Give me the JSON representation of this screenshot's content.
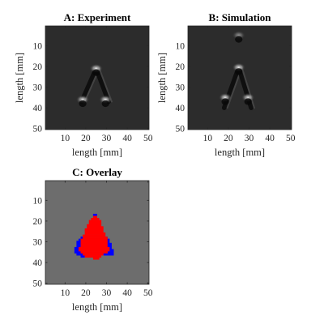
{
  "figure": {
    "background": "#ffffff",
    "axis_color": "#262626"
  },
  "chart_data": [
    {
      "type": "heatmap",
      "title": "A: Experiment",
      "xlabel": "length [mm]",
      "ylabel": "length [mm]",
      "xlim": [
        0.5,
        50.5
      ],
      "ylim": [
        0.5,
        50.5
      ],
      "xticks": [
        10,
        20,
        30,
        40,
        50
      ],
      "yticks": [
        10,
        20,
        30,
        40,
        50
      ],
      "y_direction": "down",
      "colormap": "gray",
      "background_color": "#2b2b2b",
      "features": [
        {
          "kind": "bright",
          "x": 25,
          "y": 21,
          "intensity": 0.95
        },
        {
          "kind": "bright",
          "x": 18.5,
          "y": 36,
          "intensity": 0.9
        },
        {
          "kind": "bright",
          "x": 29.5,
          "y": 36,
          "intensity": 0.9
        },
        {
          "kind": "dark-streak",
          "from": [
            25,
            21
          ],
          "to": [
            18,
            37
          ]
        },
        {
          "kind": "dark-streak",
          "from": [
            25,
            21
          ],
          "to": [
            31,
            37
          ]
        }
      ]
    },
    {
      "type": "heatmap",
      "title": "B: Simulation",
      "xlabel": "length [mm]",
      "ylabel": "length [mm]",
      "xlim": [
        0.5,
        50.5
      ],
      "ylim": [
        0.5,
        50.5
      ],
      "xticks": [
        10,
        20,
        30,
        40,
        50
      ],
      "yticks": [
        10,
        20,
        30,
        40,
        50
      ],
      "y_direction": "down",
      "colormap": "gray",
      "background_color": "#2b2b2b",
      "features": [
        {
          "kind": "bright",
          "x": 25,
          "y": 20.5,
          "intensity": 0.95
        },
        {
          "kind": "bright",
          "x": 18.5,
          "y": 35,
          "intensity": 0.9
        },
        {
          "kind": "bright",
          "x": 29.5,
          "y": 35,
          "intensity": 0.9
        },
        {
          "kind": "dark-streak",
          "from": [
            25,
            20.5
          ],
          "to": [
            18,
            40
          ]
        },
        {
          "kind": "dark-streak",
          "from": [
            25,
            20.5
          ],
          "to": [
            31,
            40
          ]
        },
        {
          "kind": "bright",
          "x": 25,
          "y": 5,
          "intensity": 0.5
        }
      ]
    },
    {
      "type": "heatmap",
      "title": "C: Overlay",
      "xlabel": "length [mm]",
      "ylabel": "",
      "xlim": [
        0.5,
        50.5
      ],
      "ylim": [
        0.5,
        50.5
      ],
      "xticks": [
        10,
        20,
        30,
        40,
        50
      ],
      "yticks": [
        10,
        20,
        30,
        40,
        50
      ],
      "y_direction": "down",
      "background_color": "#6d6d6d",
      "regions": [
        {
          "color": "#0000ff",
          "rows": [
            {
              "y": 28,
              "x": [
                18,
                20
              ]
            },
            {
              "y": 29,
              "x": [
                17,
                19
              ]
            },
            {
              "y": 30,
              "x": [
                16,
                18
              ]
            },
            {
              "y": 31,
              "x": [
                16,
                18
              ]
            },
            {
              "y": 32,
              "x": [
                16,
                18
              ]
            },
            {
              "y": 33,
              "x": [
                15,
                17
              ]
            },
            {
              "y": 34,
              "x": [
                15,
                17
              ]
            },
            {
              "y": 35,
              "x": [
                15,
                18
              ]
            },
            {
              "y": 36,
              "x": [
                16,
                19
              ]
            },
            {
              "y": 37,
              "x": [
                18,
                19
              ]
            },
            {
              "y": 28,
              "x": [
                29,
                30
              ]
            },
            {
              "y": 29,
              "x": [
                30,
                31
              ]
            },
            {
              "y": 30,
              "x": [
                30,
                31
              ]
            },
            {
              "y": 31,
              "x": [
                30,
                32
              ]
            },
            {
              "y": 32,
              "x": [
                30,
                32
              ]
            },
            {
              "y": 33,
              "x": [
                31,
                32
              ]
            },
            {
              "y": 34,
              "x": [
                31,
                33
              ]
            },
            {
              "y": 35,
              "x": [
                31,
                33
              ]
            },
            {
              "y": 36,
              "x": [
                29,
                33
              ]
            },
            {
              "y": 17,
              "x": [
                24,
                25
              ]
            },
            {
              "y": 20,
              "x": [
                23,
                23
              ]
            }
          ]
        },
        {
          "color": "#ff0000",
          "rows": [
            {
              "y": 18,
              "x": [
                24,
                25
              ]
            },
            {
              "y": 19,
              "x": [
                23,
                26
              ]
            },
            {
              "y": 20,
              "x": [
                22,
                27
              ]
            },
            {
              "y": 21,
              "x": [
                22,
                27
              ]
            },
            {
              "y": 22,
              "x": [
                21,
                27
              ]
            },
            {
              "y": 23,
              "x": [
                21,
                28
              ]
            },
            {
              "y": 24,
              "x": [
                20,
                28
              ]
            },
            {
              "y": 25,
              "x": [
                20,
                28
              ]
            },
            {
              "y": 26,
              "x": [
                20,
                29
              ]
            },
            {
              "y": 27,
              "x": [
                19,
                29
              ]
            },
            {
              "y": 28,
              "x": [
                19,
                30
              ]
            },
            {
              "y": 29,
              "x": [
                18,
                30
              ]
            },
            {
              "y": 30,
              "x": [
                18,
                30
              ]
            },
            {
              "y": 31,
              "x": [
                18,
                30
              ]
            },
            {
              "y": 32,
              "x": [
                18,
                30
              ]
            },
            {
              "y": 33,
              "x": [
                17,
                31
              ]
            },
            {
              "y": 34,
              "x": [
                17,
                31
              ]
            },
            {
              "y": 35,
              "x": [
                18,
                30
              ]
            },
            {
              "y": 36,
              "x": [
                19,
                28
              ]
            },
            {
              "y": 37,
              "x": [
                20,
                27
              ]
            },
            {
              "y": 38,
              "x": [
                24,
                26
              ]
            }
          ]
        }
      ]
    }
  ]
}
